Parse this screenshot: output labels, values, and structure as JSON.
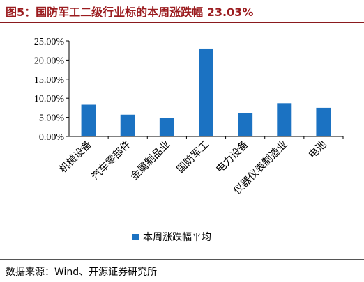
{
  "title": "图5：国防军工二级行业标的本周涨跌幅 23.03%",
  "source": "数据来源：Wind、开源证券研究所",
  "colors": {
    "bar": "#1b72c2",
    "title": "#9b1c1f"
  },
  "chart_data": {
    "type": "bar",
    "title": "",
    "xlabel": "",
    "ylabel": "",
    "categories": [
      "机械设备",
      "汽车零部件",
      "金属制品业",
      "国防军工",
      "电力设备",
      "仪器仪表制造业",
      "电池"
    ],
    "series": [
      {
        "name": "本周涨跌幅平均",
        "values": [
          8.3,
          5.7,
          4.8,
          23.0,
          6.2,
          8.7,
          7.5
        ]
      }
    ],
    "ylim": [
      0,
      25
    ],
    "yticks": [
      0,
      5,
      10,
      15,
      20,
      25
    ],
    "ytick_labels": [
      "0.00%",
      "5.00%",
      "10.00%",
      "15.00%",
      "20.00%",
      "25.00%"
    ],
    "grid": false,
    "legend_position": "bottom"
  }
}
